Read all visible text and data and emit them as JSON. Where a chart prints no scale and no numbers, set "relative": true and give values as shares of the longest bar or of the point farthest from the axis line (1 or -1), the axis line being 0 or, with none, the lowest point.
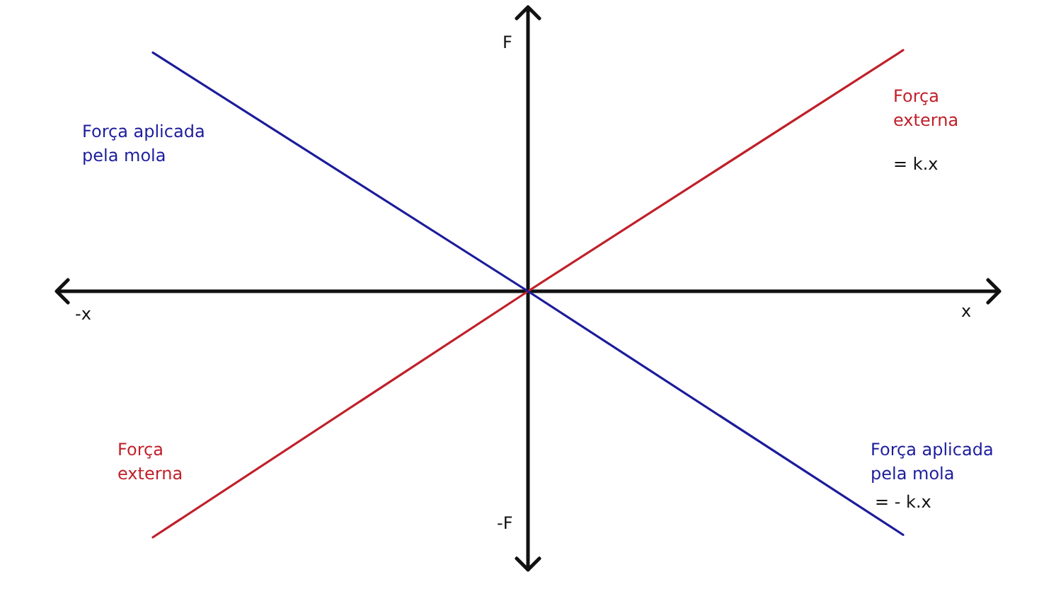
{
  "chart_data": {
    "type": "line",
    "relative": true,
    "xlabel": "x",
    "ylabel": "F",
    "categories": [
      null,
      null,
      null
    ],
    "series": [
      {
        "name": "Força externa",
        "color": "#c0202a",
        "values": [
          -1,
          0,
          0.98
        ]
      },
      {
        "name": "Força aplicada pela mola",
        "color": "#1c1c9c",
        "values": [
          0.97,
          0,
          -0.99
        ]
      }
    ],
    "annotations": [
      "= k.x",
      "= - k.x",
      "-x",
      "-F"
    ],
    "line_style": "solid"
  }
}
